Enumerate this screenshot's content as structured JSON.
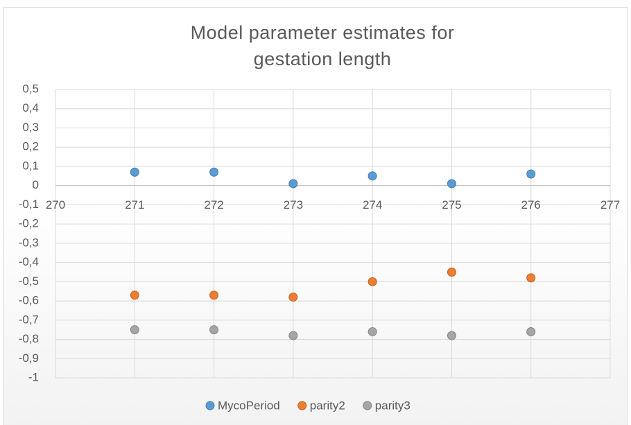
{
  "chart_data": {
    "type": "scatter",
    "title": "Model parameter estimates for gestation length",
    "x": [
      271,
      272,
      273,
      274,
      275,
      276
    ],
    "series": [
      {
        "name": "MycoPeriod",
        "color": "#5b9bd5",
        "values": [
          0.07,
          0.07,
          0.01,
          0.05,
          0.01,
          0.06
        ]
      },
      {
        "name": "parity2",
        "color": "#ed7d31",
        "values": [
          -0.57,
          -0.57,
          -0.58,
          -0.5,
          -0.45,
          -0.48
        ]
      },
      {
        "name": "parity3",
        "color": "#a5a5a5",
        "values": [
          -0.75,
          -0.75,
          -0.78,
          -0.76,
          -0.78,
          -0.76
        ]
      }
    ],
    "xlim": [
      270,
      277
    ],
    "xticks": [
      270,
      271,
      272,
      273,
      274,
      275,
      276,
      277
    ],
    "ylim": [
      -1,
      0.5
    ],
    "yticks": [
      {
        "value": 0.5,
        "label": "0,5"
      },
      {
        "value": 0.4,
        "label": "0,4"
      },
      {
        "value": 0.3,
        "label": "0,3"
      },
      {
        "value": 0.2,
        "label": "0,2"
      },
      {
        "value": 0.1,
        "label": "0,1"
      },
      0,
      {
        "value": -0.1,
        "label": "-0,1"
      },
      {
        "value": -0.2,
        "label": "-0,2"
      },
      {
        "value": -0.3,
        "label": "-0,3"
      },
      {
        "value": -0.4,
        "label": "-0,4"
      },
      {
        "value": -0.5,
        "label": "-0,5"
      },
      {
        "value": -0.6,
        "label": "-0,6"
      },
      {
        "value": -0.7,
        "label": "-0,7"
      },
      {
        "value": -0.8,
        "label": "-0,8"
      },
      {
        "value": -0.9,
        "label": "-0,9"
      },
      -1
    ],
    "grid": true,
    "legend": "bottom"
  }
}
